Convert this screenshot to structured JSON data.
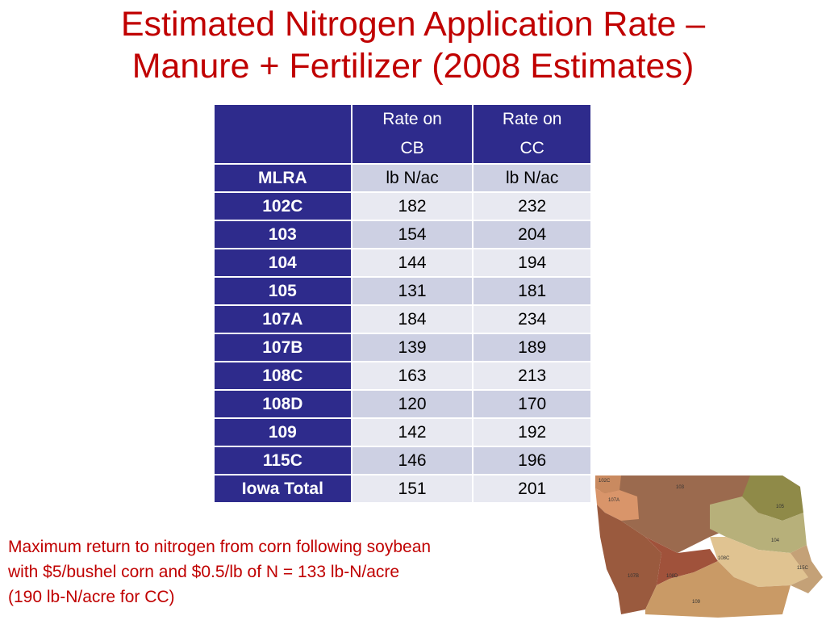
{
  "title": {
    "line1": "Estimated Nitrogen Application Rate –",
    "line2": "Manure + Fertilizer (2008 Estimates)"
  },
  "table": {
    "header": {
      "blank": "",
      "col_cb_line1": "Rate on",
      "col_cb_line2": "CB",
      "col_cc_line1": "Rate on",
      "col_cc_line2": "CC"
    },
    "units_row": {
      "label": "MLRA",
      "cb": "lb N/ac",
      "cc": "lb N/ac"
    },
    "rows": [
      {
        "mlra": "102C",
        "cb": "182",
        "cc": "232"
      },
      {
        "mlra": "103",
        "cb": "154",
        "cc": "204"
      },
      {
        "mlra": "104",
        "cb": "144",
        "cc": "194"
      },
      {
        "mlra": "105",
        "cb": "131",
        "cc": "181"
      },
      {
        "mlra": "107A",
        "cb": "184",
        "cc": "234"
      },
      {
        "mlra": "107B",
        "cb": "139",
        "cc": "189"
      },
      {
        "mlra": "108C",
        "cb": "163",
        "cc": "213"
      },
      {
        "mlra": "108D",
        "cb": "120",
        "cc": "170"
      },
      {
        "mlra": "109",
        "cb": "142",
        "cc": "192"
      },
      {
        "mlra": "115C",
        "cb": "146",
        "cc": "196"
      },
      {
        "mlra": "Iowa Total",
        "cb": "151",
        "cc": "201"
      }
    ]
  },
  "note": {
    "line1": "Maximum return to nitrogen from corn following soybean",
    "line2": "with $5/bushel corn and $0.5/lb of N = 133 lb-N/acre",
    "line3": "(190 lb-N/acre for CC)"
  },
  "map": {
    "labels": [
      "102C",
      "107A",
      "103",
      "105",
      "104",
      "108C",
      "107B",
      "108D",
      "115C",
      "109"
    ]
  },
  "colors": {
    "title_red": "#c00000",
    "header_blue": "#2e2b8c",
    "row_light": "#e8e9f1",
    "row_mid": "#cdd0e3"
  }
}
